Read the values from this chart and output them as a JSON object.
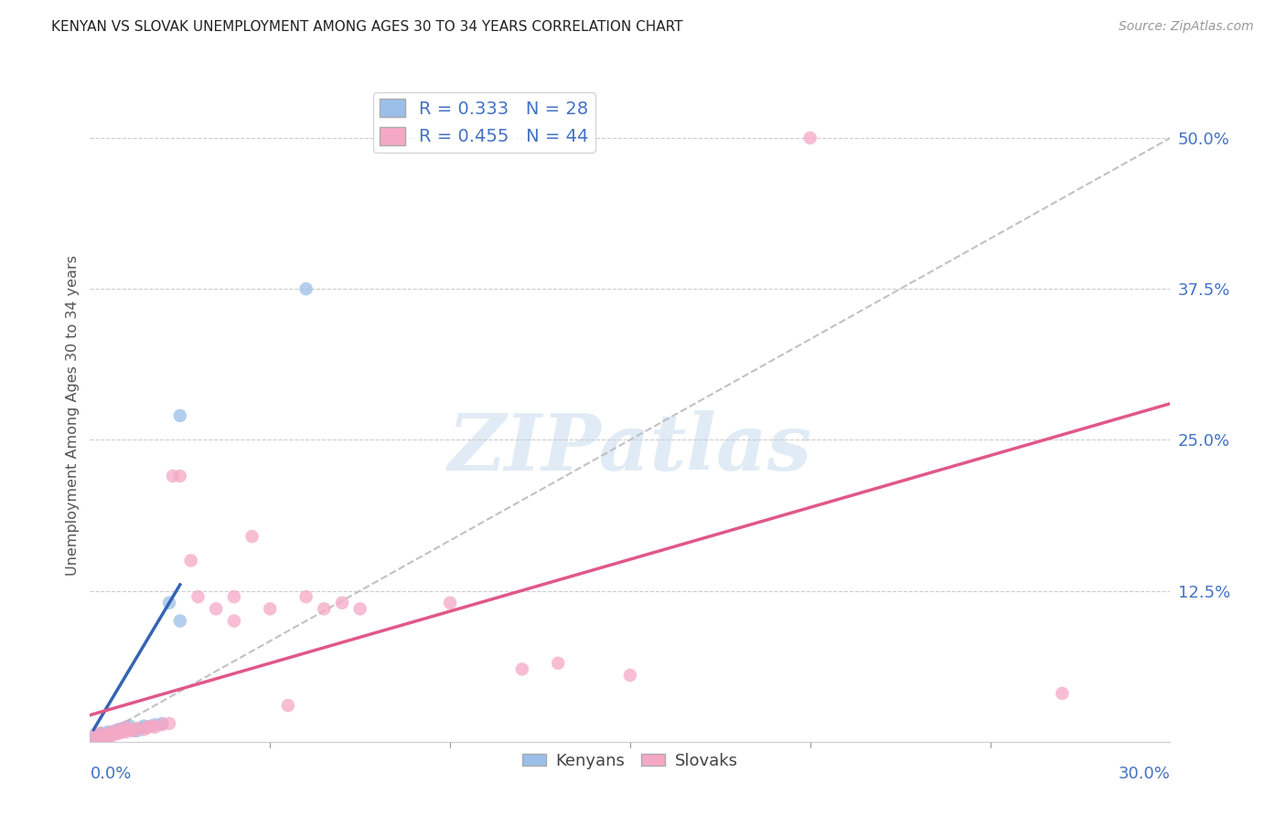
{
  "title": "KENYAN VS SLOVAK UNEMPLOYMENT AMONG AGES 30 TO 34 YEARS CORRELATION CHART",
  "source": "Source: ZipAtlas.com",
  "ylabel": "Unemployment Among Ages 30 to 34 years",
  "xlim": [
    0.0,
    0.3
  ],
  "ylim": [
    0.0,
    0.54
  ],
  "kenyan_color": "#9BBFE8",
  "slovak_color": "#F5A8C5",
  "kenyan_line_color": "#3464B4",
  "slovak_line_color": "#E05888",
  "dashed_line_color": "#BBBBBB",
  "grid_color": "#CCCCCC",
  "background_color": "#FFFFFF",
  "legend_kenyan_R": "R = 0.333",
  "legend_kenyan_N": "N = 28",
  "legend_slovak_R": "R = 0.455",
  "legend_slovak_N": "N = 44",
  "label_color": "#4472C4",
  "watermark_text": "ZIPatlas",
  "title_fontsize": 11,
  "kenyan_points": [
    [
      0.001,
      0.001
    ],
    [
      0.001,
      0.004
    ],
    [
      0.002,
      0.003
    ],
    [
      0.002,
      0.006
    ],
    [
      0.003,
      0.002
    ],
    [
      0.003,
      0.005
    ],
    [
      0.003,
      0.007
    ],
    [
      0.004,
      0.004
    ],
    [
      0.004,
      0.006
    ],
    [
      0.005,
      0.005
    ],
    [
      0.005,
      0.008
    ],
    [
      0.006,
      0.007
    ],
    [
      0.007,
      0.009
    ],
    [
      0.008,
      0.01
    ],
    [
      0.009,
      0.011
    ],
    [
      0.01,
      0.012
    ],
    [
      0.011,
      0.013
    ],
    [
      0.012,
      0.01
    ],
    [
      0.013,
      0.009
    ],
    [
      0.014,
      0.011
    ],
    [
      0.015,
      0.013
    ],
    [
      0.016,
      0.012
    ],
    [
      0.018,
      0.014
    ],
    [
      0.02,
      0.015
    ],
    [
      0.022,
      0.115
    ],
    [
      0.025,
      0.1
    ],
    [
      0.025,
      0.27
    ],
    [
      0.06,
      0.375
    ]
  ],
  "slovak_points": [
    [
      0.001,
      0.005
    ],
    [
      0.002,
      0.003
    ],
    [
      0.003,
      0.004
    ],
    [
      0.003,
      0.007
    ],
    [
      0.004,
      0.005
    ],
    [
      0.005,
      0.003
    ],
    [
      0.005,
      0.006
    ],
    [
      0.006,
      0.005
    ],
    [
      0.006,
      0.008
    ],
    [
      0.007,
      0.006
    ],
    [
      0.008,
      0.007
    ],
    [
      0.008,
      0.01
    ],
    [
      0.009,
      0.008
    ],
    [
      0.01,
      0.008
    ],
    [
      0.01,
      0.012
    ],
    [
      0.011,
      0.01
    ],
    [
      0.012,
      0.009
    ],
    [
      0.013,
      0.011
    ],
    [
      0.015,
      0.01
    ],
    [
      0.016,
      0.012
    ],
    [
      0.017,
      0.013
    ],
    [
      0.018,
      0.012
    ],
    [
      0.02,
      0.014
    ],
    [
      0.022,
      0.015
    ],
    [
      0.023,
      0.22
    ],
    [
      0.025,
      0.22
    ],
    [
      0.028,
      0.15
    ],
    [
      0.03,
      0.12
    ],
    [
      0.035,
      0.11
    ],
    [
      0.04,
      0.1
    ],
    [
      0.04,
      0.12
    ],
    [
      0.045,
      0.17
    ],
    [
      0.05,
      0.11
    ],
    [
      0.055,
      0.03
    ],
    [
      0.06,
      0.12
    ],
    [
      0.065,
      0.11
    ],
    [
      0.07,
      0.115
    ],
    [
      0.075,
      0.11
    ],
    [
      0.1,
      0.115
    ],
    [
      0.12,
      0.06
    ],
    [
      0.13,
      0.065
    ],
    [
      0.15,
      0.055
    ],
    [
      0.2,
      0.5
    ],
    [
      0.27,
      0.04
    ]
  ],
  "kenyan_line_x": [
    0.001,
    0.025
  ],
  "kenyan_line_y": [
    0.01,
    0.13
  ],
  "slovak_line_x": [
    0.0,
    0.3
  ],
  "slovak_line_y": [
    0.022,
    0.28
  ],
  "diag_line_x": [
    0.0,
    0.3
  ],
  "diag_line_y": [
    0.0,
    0.5
  ]
}
